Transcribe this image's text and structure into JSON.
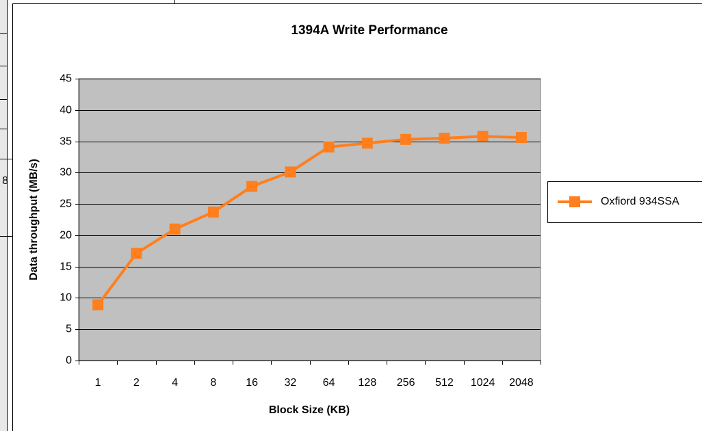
{
  "sheet_fragment": "8",
  "chart_data": {
    "type": "line",
    "title": "1394A Write Performance",
    "x_label": "Block Size (KB)",
    "y_label": "Data throughput (MB/s)",
    "categories": [
      "1",
      "2",
      "4",
      "8",
      "16",
      "32",
      "64",
      "128",
      "256",
      "512",
      "1024",
      "2048"
    ],
    "series": [
      {
        "name": "Oxfiord 934SSA",
        "color": "#ff7f1e",
        "values": [
          8.9,
          17.1,
          21.0,
          23.7,
          27.8,
          30.1,
          34.1,
          34.7,
          35.3,
          35.5,
          35.8,
          35.6
        ]
      }
    ],
    "ylim": [
      0,
      45
    ],
    "yticks": [
      0,
      5,
      10,
      15,
      20,
      25,
      30,
      35,
      40,
      45
    ],
    "grid": true,
    "legend": "right",
    "plot_background": "#c0c0c0"
  }
}
